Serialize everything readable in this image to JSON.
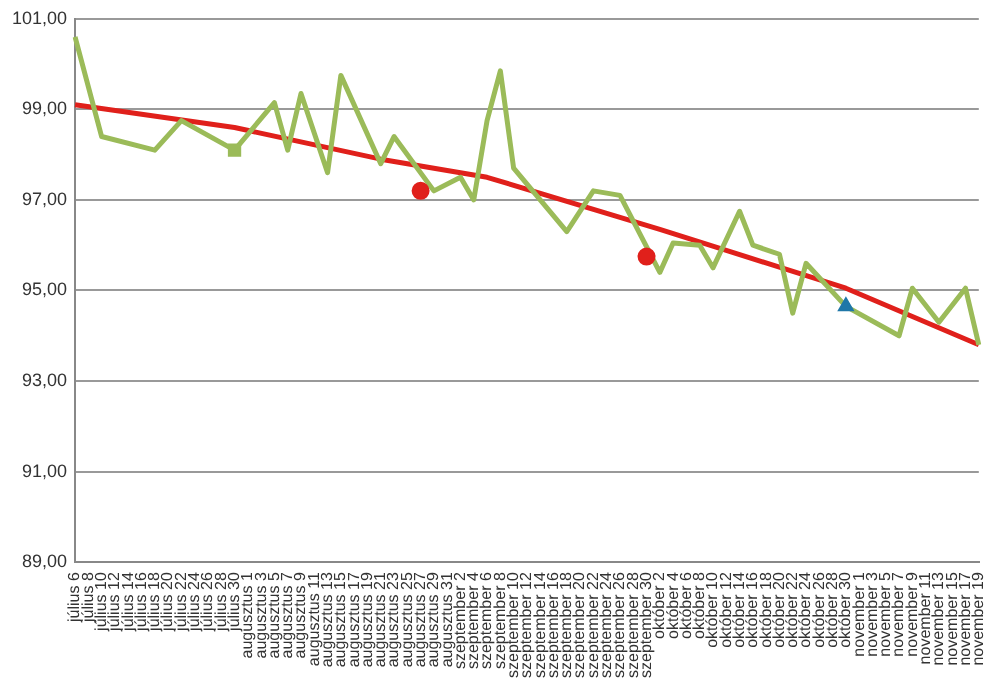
{
  "chart_data": {
    "type": "line",
    "categories": [
      "július 6",
      "július 8",
      "július 10",
      "július 12",
      "július 14",
      "július 16",
      "július 18",
      "július 20",
      "július 22",
      "július 24",
      "július 26",
      "július 28",
      "július 30",
      "augusztus 1",
      "augusztus 3",
      "augusztus 5",
      "augusztus 7",
      "augusztus 9",
      "augusztus 11",
      "augusztus 13",
      "augusztus 15",
      "augusztus 17",
      "augusztus 19",
      "augusztus 21",
      "augusztus 23",
      "augusztus 25",
      "augusztus 27",
      "augusztus 29",
      "augusztus 31",
      "szeptember 2",
      "szeptember 4",
      "szeptember 6",
      "szeptember 8",
      "szeptember 10",
      "szeptember 12",
      "szeptember 14",
      "szeptember 16",
      "szeptember 18",
      "szeptember 20",
      "szeptember 22",
      "szeptember 24",
      "szeptember 26",
      "szeptember 28",
      "szeptember 30",
      "október 2",
      "október 4",
      "október 6",
      "október 8",
      "október 10",
      "október 12",
      "október 14",
      "október 16",
      "október 18",
      "október 20",
      "október 22",
      "október 24",
      "október 26",
      "október 28",
      "október 30",
      "november 1",
      "november 3",
      "november 5",
      "november 7",
      "november 9",
      "november 11",
      "november 13",
      "november 15",
      "november 17",
      "november 19"
    ],
    "series": [
      {
        "type": "line",
        "color": "#9bbb59",
        "values": [
          100.6,
          null,
          98.4,
          null,
          null,
          null,
          98.1,
          null,
          98.75,
          null,
          null,
          null,
          98.1,
          null,
          null,
          99.15,
          98.1,
          99.35,
          null,
          97.6,
          99.75,
          null,
          null,
          97.8,
          98.4,
          null,
          null,
          97.2,
          null,
          97.5,
          97.0,
          98.75,
          99.85,
          97.7,
          null,
          null,
          null,
          96.3,
          null,
          97.2,
          null,
          97.1,
          null,
          null,
          95.4,
          96.05,
          null,
          96.0,
          95.5,
          null,
          96.75,
          96.0,
          null,
          95.8,
          94.5,
          95.6,
          null,
          null,
          94.65,
          null,
          null,
          null,
          94.0,
          95.05,
          null,
          94.3,
          null,
          95.05,
          93.8
        ]
      },
      {
        "type": "line",
        "color": "#e0201b",
        "values": [
          99.1,
          null,
          null,
          null,
          null,
          null,
          null,
          null,
          null,
          null,
          null,
          null,
          98.6,
          null,
          null,
          null,
          null,
          null,
          null,
          null,
          null,
          null,
          null,
          97.9,
          null,
          null,
          null,
          null,
          null,
          null,
          null,
          97.5,
          null,
          null,
          null,
          null,
          null,
          null,
          null,
          null,
          null,
          null,
          null,
          null,
          96.35,
          null,
          null,
          null,
          null,
          null,
          null,
          null,
          null,
          null,
          null,
          null,
          null,
          null,
          95.05,
          null,
          null,
          null,
          null,
          null,
          null,
          null,
          null,
          null,
          93.8
        ]
      },
      {
        "type": "scatter",
        "color": "#9bbb59",
        "marker": "square",
        "x": [
          "július 30"
        ],
        "values": [
          98.1
        ]
      },
      {
        "type": "scatter",
        "color": "#e0201b",
        "marker": "circle",
        "x": [
          "augusztus 27",
          "szeptember 30"
        ],
        "values": [
          97.2,
          95.75
        ]
      },
      {
        "type": "scatter",
        "color": "#1f77a8",
        "marker": "triangle",
        "x": [
          "október 30"
        ],
        "values": [
          94.65
        ]
      }
    ],
    "ylim": [
      89,
      101
    ],
    "yticks": [
      {
        "value": 89,
        "label": "89,00"
      },
      {
        "value": 91,
        "label": "91,00"
      },
      {
        "value": 93,
        "label": "93,00"
      },
      {
        "value": 95,
        "label": "95,00"
      },
      {
        "value": 97,
        "label": "97,00"
      },
      {
        "value": 99,
        "label": "99,00"
      },
      {
        "value": 101,
        "label": "101,00"
      }
    ],
    "grid": "y"
  }
}
